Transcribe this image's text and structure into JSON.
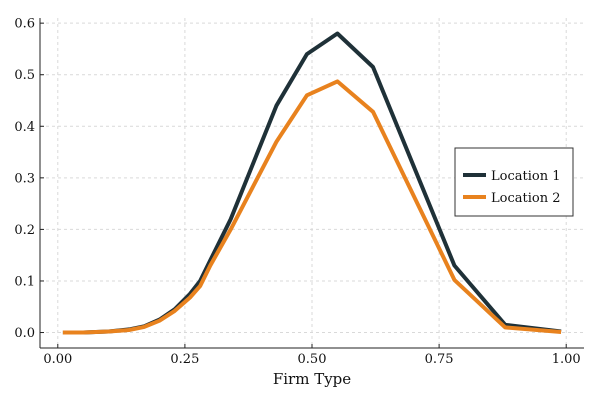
{
  "chart_data": {
    "type": "line",
    "xlabel": "Firm Type",
    "ylabel": "",
    "xlim": [
      -0.035,
      1.035
    ],
    "ylim": [
      -0.03,
      0.61
    ],
    "xticks": [
      0.0,
      0.25,
      0.5,
      0.75,
      1.0
    ],
    "xtick_labels": [
      "0.00",
      "0.25",
      "0.50",
      "0.75",
      "1.00"
    ],
    "yticks": [
      0.0,
      0.1,
      0.2,
      0.3,
      0.4,
      0.5,
      0.6
    ],
    "ytick_labels": [
      "0.0",
      "0.1",
      "0.2",
      "0.3",
      "0.4",
      "0.5",
      "0.6"
    ],
    "grid": true,
    "legend_position": "right",
    "series": [
      {
        "name": "Location 1",
        "color": "#1f3138",
        "x": [
          0.01,
          0.05,
          0.1,
          0.14,
          0.17,
          0.2,
          0.23,
          0.26,
          0.28,
          0.3,
          0.34,
          0.43,
          0.49,
          0.55,
          0.62,
          0.78,
          0.88,
          0.99
        ],
        "y": [
          0.0,
          0.0,
          0.002,
          0.006,
          0.012,
          0.025,
          0.045,
          0.075,
          0.1,
          0.14,
          0.22,
          0.44,
          0.54,
          0.58,
          0.515,
          0.13,
          0.015,
          0.002
        ]
      },
      {
        "name": "Location 2",
        "color": "#e8821e",
        "x": [
          0.01,
          0.05,
          0.1,
          0.14,
          0.17,
          0.2,
          0.23,
          0.26,
          0.28,
          0.3,
          0.34,
          0.43,
          0.49,
          0.55,
          0.62,
          0.78,
          0.88,
          0.99
        ],
        "y": [
          0.0,
          0.0,
          0.002,
          0.005,
          0.011,
          0.023,
          0.042,
          0.068,
          0.09,
          0.13,
          0.2,
          0.37,
          0.46,
          0.487,
          0.428,
          0.102,
          0.01,
          0.001
        ]
      }
    ]
  }
}
